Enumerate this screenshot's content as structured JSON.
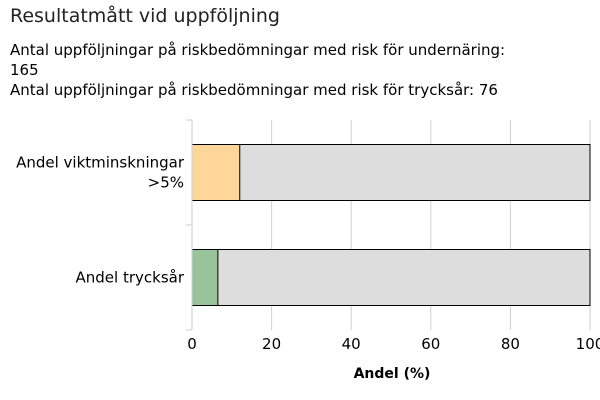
{
  "title": "Resultatmått vid uppföljning",
  "stats": [
    {
      "label": "Antal uppföljningar på riskbedömningar med risk för undernäring:",
      "value": "165"
    },
    {
      "label": "Antal uppföljningar på riskbedömningar med risk för trycksår:",
      "value": "76"
    }
  ],
  "chart_data": {
    "type": "bar",
    "orientation": "horizontal",
    "stacked_to_total": true,
    "categories": [
      [
        "Andel viktminskningar",
        ">5%"
      ],
      [
        "Andel trycksår"
      ]
    ],
    "values": [
      12,
      6.5
    ],
    "total": 100,
    "bar_colors": [
      "#ffd699",
      "#99c499"
    ],
    "remainder_color": "#dddddd",
    "xlabel": "Andel (%)",
    "xlim": [
      0,
      100
    ],
    "xticks": [
      0,
      20,
      40,
      60,
      80,
      100
    ],
    "grid": true
  }
}
